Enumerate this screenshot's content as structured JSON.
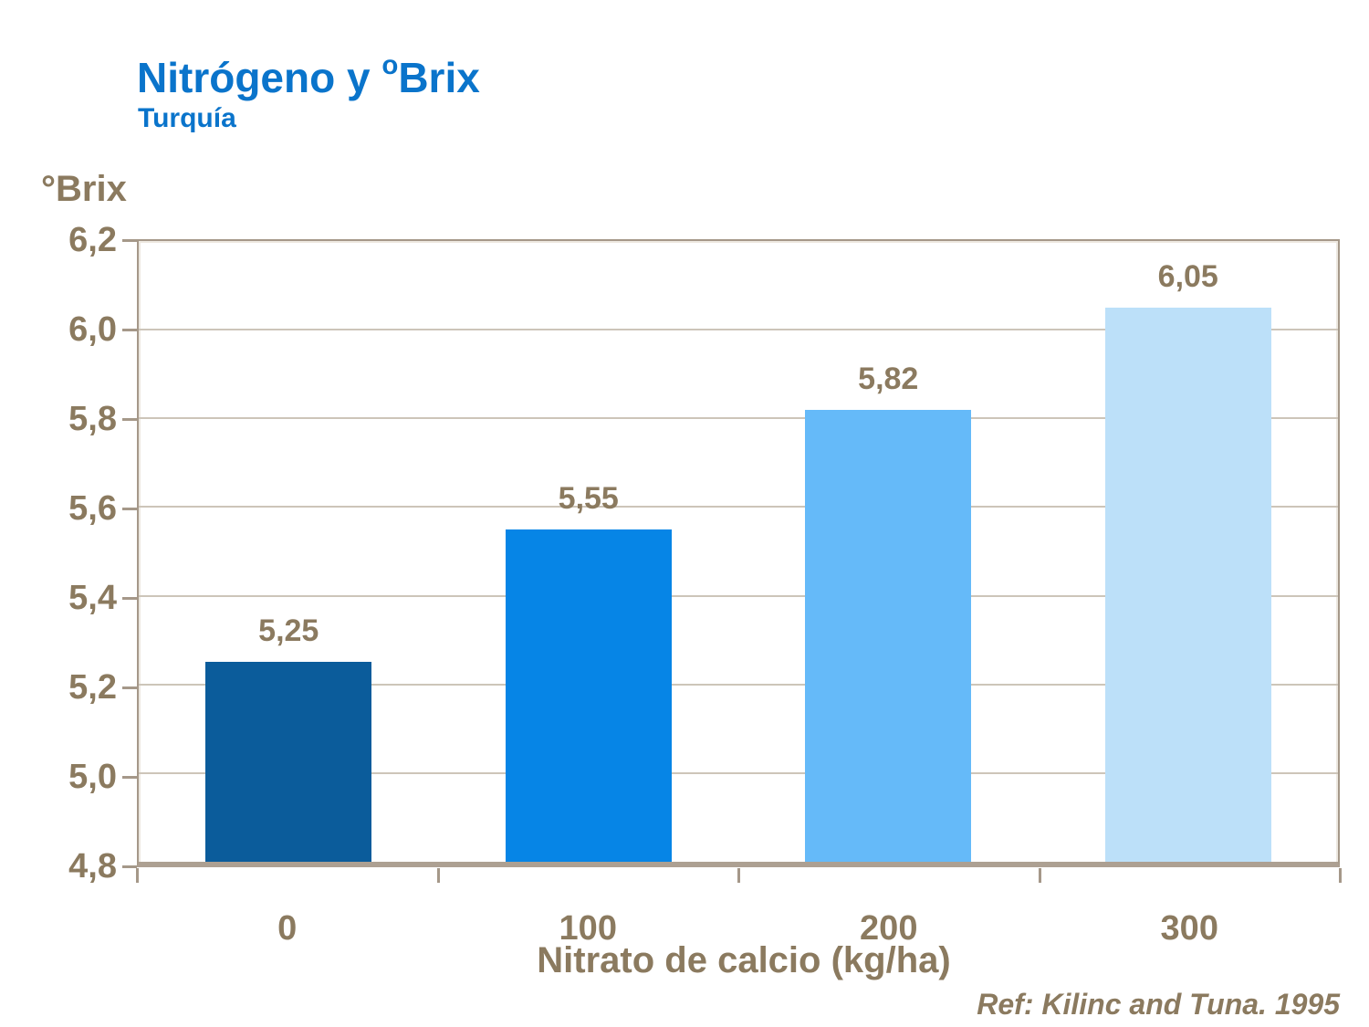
{
  "header": {
    "title_prefix": "Nitrógeno y ",
    "title_sup": "o",
    "title_suffix": "Brix",
    "subtitle": "Turquía"
  },
  "chart_data": {
    "type": "bar",
    "title": "Nitrógeno y ºBrix",
    "subtitle": "Turquía",
    "categories": [
      "0",
      "100",
      "200",
      "300"
    ],
    "values": [
      5.25,
      5.55,
      5.82,
      6.05
    ],
    "value_labels": [
      "5,25",
      "5,55",
      "5,82",
      "6,05"
    ],
    "bar_colors": [
      "#0B5C9B",
      "#0685E6",
      "#65BAF9",
      "#BCE0F9"
    ],
    "xlabel": "Nitrato de calcio (kg/ha)",
    "ylabel": "°Brix",
    "ylim": [
      4.8,
      6.2
    ],
    "ytick_step": 0.2,
    "yticks": [
      "6,2",
      "6,0",
      "5,8",
      "5,6",
      "5,4",
      "5,2",
      "5,0",
      "4,8"
    ],
    "grid": true,
    "legend": "none"
  },
  "footer": {
    "reference": "Ref: Kilinc and Tuna. 1995"
  },
  "colors": {
    "title_blue": "#0A74CB",
    "text_brown": "#8B7A5F",
    "gridline": "#CDC5B9",
    "axis_frame": "#A59889",
    "background": "#FFFFFF"
  }
}
